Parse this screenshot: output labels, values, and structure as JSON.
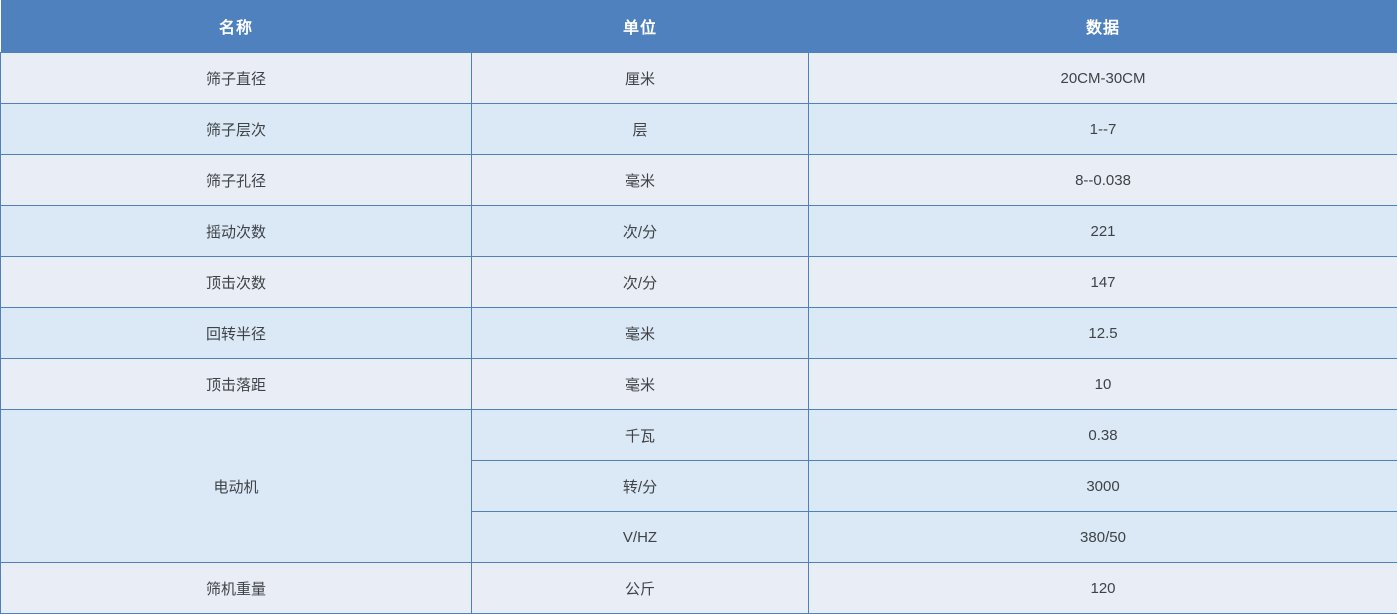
{
  "colors": {
    "header_bg": "#4e81bd",
    "header_text": "#ffffff",
    "band_gray": "#e9edf5",
    "band_blue": "#dbe8f6",
    "border": "#4f81bd",
    "cell_text": "#3f4347"
  },
  "table": {
    "columns": [
      "名称",
      "单位",
      "数据"
    ],
    "rows": [
      {
        "name": "筛子直径",
        "unit": "厘米",
        "value": "20CM-30CM"
      },
      {
        "name": "筛子层次",
        "unit": "层",
        "value": "1--7"
      },
      {
        "name": "筛子孔径",
        "unit": "毫米",
        "value": "8--0.038"
      },
      {
        "name": "摇动次数",
        "unit": "次/分",
        "value": "221"
      },
      {
        "name": "顶击次数",
        "unit": "次/分",
        "value": "147"
      },
      {
        "name": "回转半径",
        "unit": "毫米",
        "value": "12.5"
      },
      {
        "name": "顶击落距",
        "unit": "毫米",
        "value": "10"
      },
      {
        "name": "电动机",
        "rowspan": 3,
        "unit": "千瓦",
        "value": "0.38"
      },
      {
        "unit": "转/分",
        "value": "3000"
      },
      {
        "unit": "V/HZ",
        "value": "380/50"
      },
      {
        "name": "筛机重量",
        "unit": "公斤",
        "value": "120"
      }
    ]
  }
}
